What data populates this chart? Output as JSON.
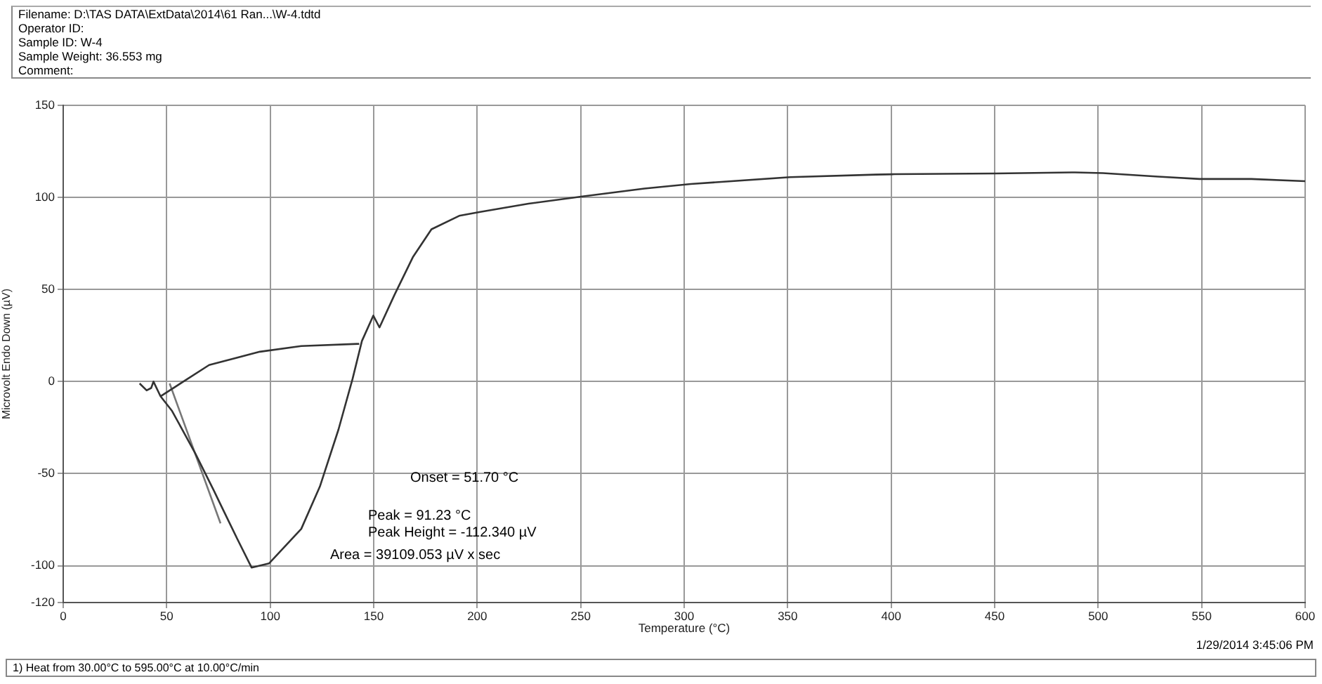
{
  "chart_data": {
    "type": "line",
    "xlabel": "Temperature (°C)",
    "ylabel": "Microvolt Endo Down (µV)",
    "xlim": [
      0,
      600
    ],
    "xticks": [
      0,
      50,
      100,
      150,
      200,
      250,
      300,
      350,
      400,
      450,
      500,
      550,
      600
    ],
    "ylim": [
      -120,
      150
    ],
    "yticks": [
      -120,
      -100,
      -50,
      0,
      50,
      100,
      150
    ],
    "grid": true,
    "legend": false,
    "marker": "none",
    "line_style": "solid",
    "series": [
      {
        "color": "#333333",
        "x": [
          36.9,
          40.3,
          42.5,
          43.6,
          47,
          52.6,
          63.8,
          72.7,
          77.2,
          83.9,
          91,
          99.5,
          115,
          124,
          133,
          139.8,
          144.3,
          149.8,
          152.8,
          160,
          168.9,
          177.9,
          191.3,
          201,
          224.8,
          250.8,
          280.8,
          303.2,
          351.2,
          392.6,
          401.6,
          450.8,
          488.8,
          502.3,
          529,
          549,
          574,
          600
        ],
        "values": [
          -1,
          -4.8,
          -3.5,
          0,
          -8,
          -16,
          -39,
          -59,
          -69.5,
          -85,
          -101,
          -98.7,
          -80,
          -57,
          -26,
          1.5,
          22,
          35.8,
          29.4,
          47,
          67.5,
          82.7,
          90,
          92,
          96.6,
          100.5,
          104.8,
          107.3,
          111,
          112.4,
          112.6,
          113,
          113.6,
          113.2,
          111.3,
          110,
          110,
          108.8
        ]
      },
      {
        "color": "#333333",
        "x": [
          47,
          70.5,
          95,
          115,
          143
        ],
        "values": [
          -8,
          9,
          16.2,
          19.3,
          20.5
        ]
      },
      {
        "color": "#777777",
        "x": [
          51.4,
          76
        ],
        "values": [
          -1,
          -77
        ]
      }
    ],
    "annotations": [
      "Filename:   D:\\TAS DATA\\ExtData\\2014\\61 Ran...\\W-4.tdtd",
      "Operator ID:",
      "Sample ID:   W-4",
      "Sample Weight:  36.553 mg",
      "Comment:",
      "Onset = 51.70 °C",
      "Peak = 91.23 °C",
      "Peak Height = -112.340 µV",
      "Area = 39109.053 µV x sec",
      "1/29/2014 3:45:06 PM",
      "1) Heat from 30.00°C to 595.00°C at 10.00°C/min"
    ]
  }
}
